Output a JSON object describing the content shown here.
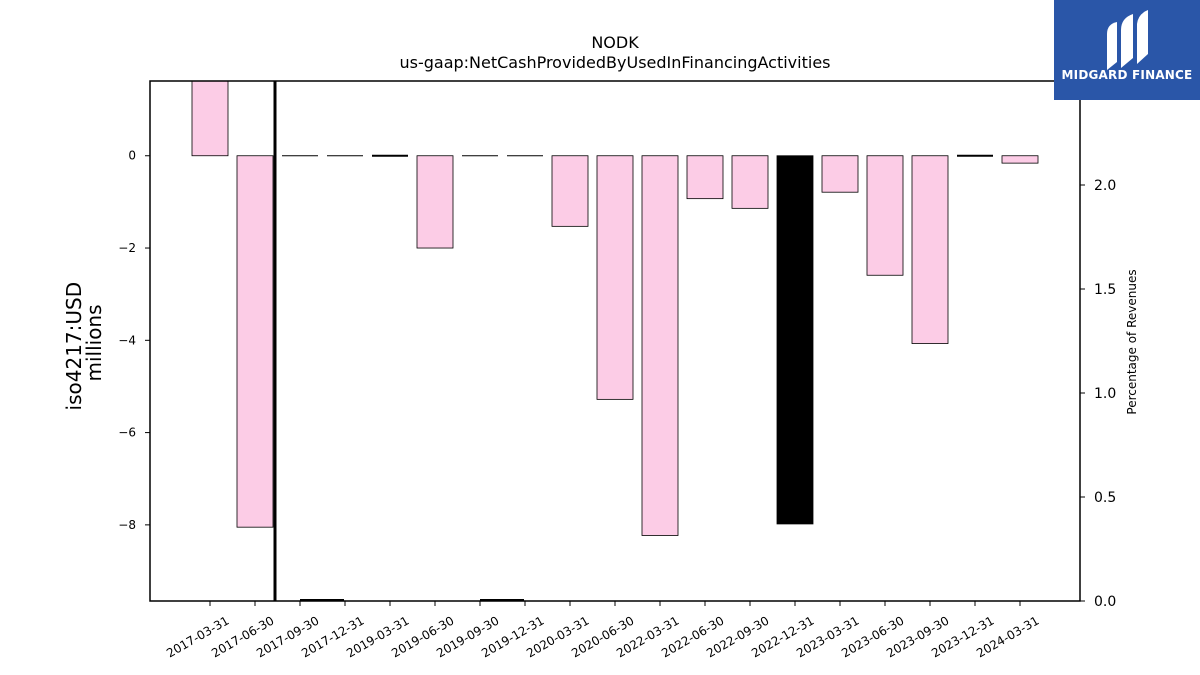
{
  "chart_data": {
    "type": "bar",
    "title": "NODK",
    "subtitle": "us-gaap:NetCashProvidedByUsedInFinancingActivities",
    "ylabel_line1": "iso4217:USD",
    "ylabel_line2": "millions",
    "y2label": "Percentage of Revenues",
    "categories": [
      "2017-03-31",
      "2017-06-30",
      "2017-09-30",
      "2017-12-31",
      "2019-03-31",
      "2019-06-30",
      "2019-09-30",
      "2019-12-31",
      "2020-03-31",
      "2020-06-30",
      "2022-03-31",
      "2022-06-30",
      "2022-09-30",
      "2022-12-31",
      "2023-03-31",
      "2023-06-30",
      "2023-09-30",
      "2023-12-31",
      "2024-03-31"
    ],
    "values": [
      1.62,
      -8.05,
      0.0,
      0.0,
      -0.02,
      -2.0,
      0.0,
      0.0,
      -1.53,
      -5.28,
      -8.23,
      -0.93,
      -1.14,
      -7.98,
      -0.79,
      -2.59,
      -4.07,
      -0.02,
      -0.16
    ],
    "highlight": [
      "2022-12-31"
    ],
    "ylim": [
      -9.65,
      1.62
    ],
    "yticks": [
      0,
      -2,
      -4,
      -6,
      -8
    ],
    "ytick_labels": [
      "0",
      "−2",
      "−4",
      "−6",
      "−8"
    ],
    "y2lim": [
      0.0,
      2.5
    ],
    "y2ticks": [
      0.0,
      0.5,
      1.0,
      1.5,
      2.0
    ],
    "y2tick_labels": [
      "0.0",
      "0.5",
      "1.0",
      "1.5",
      "2.0"
    ],
    "percentage_series": [
      {
        "category": "2017-06-30",
        "value": 2.5
      },
      {
        "category": "2017-09-30",
        "value": 0.002
      },
      {
        "category": "2019-09-30",
        "value": 0.002
      }
    ],
    "bar_color": "#fccce6",
    "highlight_color": "#000000",
    "edge_color": "#000000",
    "grid": false
  },
  "logo": {
    "text": "MIDGARD FINANCE",
    "background": "#2a56a8"
  }
}
